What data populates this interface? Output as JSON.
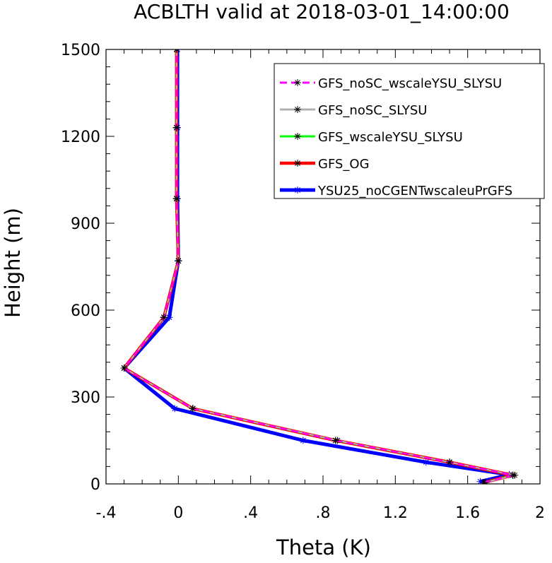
{
  "chart_data": {
    "type": "line",
    "title": "ACBLTH valid at 2018-03-01_14:00:00",
    "xlabel": "Theta (K)",
    "ylabel": "Height (m)",
    "xlim": [
      -0.4,
      2.0
    ],
    "ylim": [
      0,
      1500
    ],
    "xticks": [
      -0.4,
      0,
      0.4,
      0.8,
      1.2,
      1.6,
      2.0
    ],
    "xtick_labels": [
      "-.4",
      "0",
      ".4",
      ".8",
      "1.2",
      "1.6",
      "2"
    ],
    "yticks": [
      0,
      300,
      600,
      900,
      1200,
      1500
    ],
    "ytick_labels": [
      "0",
      "300",
      "600",
      "900",
      "1200",
      "1500"
    ],
    "legend_position": "top-right",
    "series": [
      {
        "name": "YSU25_noCGENTwscaleuPrGFS",
        "color": "#0000ff",
        "dash": "solid",
        "marker_color": "#0000ff",
        "points": [
          [
            1.67,
            8
          ],
          [
            1.83,
            32
          ],
          [
            1.37,
            75
          ],
          [
            0.69,
            150
          ],
          [
            -0.02,
            260
          ],
          [
            -0.3,
            400
          ],
          [
            -0.05,
            575
          ],
          [
            0.0,
            770
          ],
          [
            -0.005,
            985
          ],
          [
            -0.005,
            1230
          ],
          [
            -0.005,
            1500
          ]
        ]
      },
      {
        "name": "GFS_OG",
        "color": "#ff0000",
        "dash": "solid",
        "marker_color": "#000000",
        "points": [
          [
            1.69,
            5
          ],
          [
            1.85,
            30
          ],
          [
            1.5,
            75
          ],
          [
            0.87,
            150
          ],
          [
            0.08,
            260
          ],
          [
            -0.3,
            400
          ],
          [
            -0.08,
            575
          ],
          [
            0.0,
            770
          ],
          [
            -0.01,
            985
          ],
          [
            -0.01,
            1230
          ],
          [
            -0.01,
            1500
          ]
        ]
      },
      {
        "name": "GFS_wscaleYSU_SLYSU",
        "color": "#00ff00",
        "dash": "solid",
        "marker_color": "#000000",
        "points": [
          [
            1.69,
            5
          ],
          [
            1.85,
            30
          ],
          [
            1.5,
            75
          ],
          [
            0.87,
            150
          ],
          [
            0.08,
            260
          ],
          [
            -0.3,
            400
          ],
          [
            -0.08,
            575
          ],
          [
            0.0,
            770
          ],
          [
            -0.01,
            985
          ],
          [
            -0.01,
            1230
          ],
          [
            -0.01,
            1500
          ]
        ]
      },
      {
        "name": "GFS_noSC_SLYSU",
        "color": "#b0b0b0",
        "dash": "solid",
        "marker_color": "#000000",
        "points": [
          [
            1.7,
            5
          ],
          [
            1.86,
            30
          ],
          [
            1.5,
            75
          ],
          [
            0.88,
            150
          ],
          [
            0.08,
            260
          ],
          [
            -0.3,
            400
          ],
          [
            -0.08,
            575
          ],
          [
            0.0,
            770
          ],
          [
            -0.01,
            985
          ],
          [
            -0.01,
            1230
          ],
          [
            -0.01,
            1500
          ]
        ]
      },
      {
        "name": "GFS_noSC_wscaleYSU_SLYSU",
        "color": "#ff00ff",
        "dash": "dashed",
        "marker_color": "#000000",
        "points": [
          [
            1.69,
            5
          ],
          [
            1.85,
            30
          ],
          [
            1.5,
            75
          ],
          [
            0.87,
            150
          ],
          [
            0.08,
            260
          ],
          [
            -0.3,
            400
          ],
          [
            -0.08,
            575
          ],
          [
            0.0,
            770
          ],
          [
            -0.01,
            985
          ],
          [
            -0.01,
            1230
          ],
          [
            -0.01,
            1500
          ]
        ]
      }
    ],
    "legend_order": [
      "GFS_noSC_wscaleYSU_SLYSU",
      "GFS_noSC_SLYSU",
      "GFS_wscaleYSU_SLYSU",
      "GFS_OG",
      "YSU25_noCGENTwscaleuPrGFS"
    ]
  }
}
